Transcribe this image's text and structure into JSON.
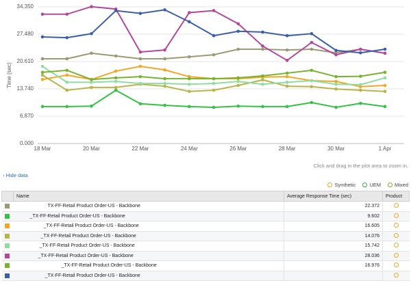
{
  "chart_data": {
    "type": "line",
    "ylabel": "Time (sec)",
    "categories": [
      "18 Mar",
      null,
      "20 Mar",
      null,
      "22 Mar",
      null,
      "24 Mar",
      null,
      "26 Mar",
      null,
      "28 Mar",
      null,
      "30 Mar",
      null,
      "1 Apr"
    ],
    "ylim": [
      0,
      34.35
    ],
    "yticks": [
      {
        "value": 0,
        "label": "0.000"
      },
      {
        "value": 6.87,
        "label": "6.870"
      },
      {
        "value": 13.74,
        "label": "13.740"
      },
      {
        "value": 20.61,
        "label": "20.610"
      },
      {
        "value": 27.48,
        "label": "27.480"
      },
      {
        "value": 34.35,
        "label": "34.350"
      }
    ],
    "grid": true,
    "series": [
      {
        "color": "#9c9a74",
        "values": [
          21.3,
          21.3,
          22.7,
          22.0,
          21.3,
          21.3,
          21.8,
          22.3,
          23.7,
          23.7,
          23.5,
          23.7,
          22.8,
          23.7,
          22.7
        ]
      },
      {
        "color": "#33c244",
        "values": [
          9.3,
          9.3,
          9.4,
          13.4,
          10.0,
          9.6,
          9.3,
          9.1,
          9.4,
          9.3,
          9.3,
          10.3,
          9.1,
          10.1,
          9.3
        ]
      },
      {
        "color": "#f5a623",
        "values": [
          16.1,
          17.2,
          16.1,
          18.2,
          19.4,
          18.5,
          16.8,
          16.3,
          16.3,
          16.7,
          16.8,
          15.8,
          15.6,
          14.3,
          14.6
        ]
      },
      {
        "color": "#b8b44a",
        "values": [
          17.2,
          13.4,
          14.1,
          14.1,
          14.9,
          14.4,
          13.1,
          13.4,
          14.6,
          16.0,
          14.4,
          14.3,
          13.7,
          13.4,
          13.1
        ]
      },
      {
        "color": "#8fdca0",
        "values": [
          19.4,
          15.4,
          15.4,
          15.6,
          15.1,
          15.1,
          14.9,
          15.1,
          15.6,
          14.9,
          15.4,
          15.8,
          14.9,
          14.8,
          16.5
        ]
      },
      {
        "color": "#b5479a",
        "values": [
          32.5,
          32.5,
          34.4,
          33.8,
          23.0,
          23.5,
          32.9,
          33.4,
          30.1,
          24.5,
          20.9,
          25.4,
          22.3,
          23.7,
          22.7
        ]
      },
      {
        "color": "#76b32e",
        "values": [
          17.9,
          18.4,
          16.1,
          16.5,
          16.8,
          16.3,
          16.3,
          16.3,
          16.5,
          17.0,
          17.7,
          18.4,
          16.8,
          16.9,
          17.9
        ]
      },
      {
        "color": "#3a5fa8",
        "values": [
          26.8,
          26.6,
          27.6,
          33.4,
          32.7,
          33.6,
          30.6,
          27.1,
          28.2,
          28.0,
          27.1,
          27.6,
          23.4,
          22.8,
          23.7
        ]
      }
    ]
  },
  "hint": "Click and drag in the plot area to zoom in.",
  "hide_data": "› Hide data",
  "legend": [
    "Synthetic",
    "UEM",
    "Mixed"
  ],
  "table": {
    "headers": [
      "Name",
      "Average Response Time (sec)",
      "Product"
    ],
    "rows": [
      {
        "color": "#9c9a74",
        "name": "TX-FF-Retail Product Order-US - Backbone",
        "value": "22.372"
      },
      {
        "color": "#33c244",
        "name": "_TX-FF-Retail Product Order-US - Backbone",
        "value": "9.602"
      },
      {
        "color": "#f5a623",
        "name": "_TX-FF-Retail Product Order-US - Backbone",
        "value": "16.605"
      },
      {
        "color": "#b8b44a",
        "name": "_TX-FF-Retail Product Order-US - Backbone",
        "value": "14.076"
      },
      {
        "color": "#8fdca0",
        "name": "_TX-FF-Retail Product Order-US - Backbone",
        "value": "15.742"
      },
      {
        "color": "#b5479a",
        "name": "_TX-FF-Retail Product Order-US - Backbone",
        "value": "28.036"
      },
      {
        "color": "#76b32e",
        "name": "_TX-FF-Retail Product Order-US - Backbone",
        "value": "16.976"
      },
      {
        "color": "#3a5fa8",
        "name": "_TX-FF-Retail Product Order-US - Backbone"
      }
    ]
  }
}
